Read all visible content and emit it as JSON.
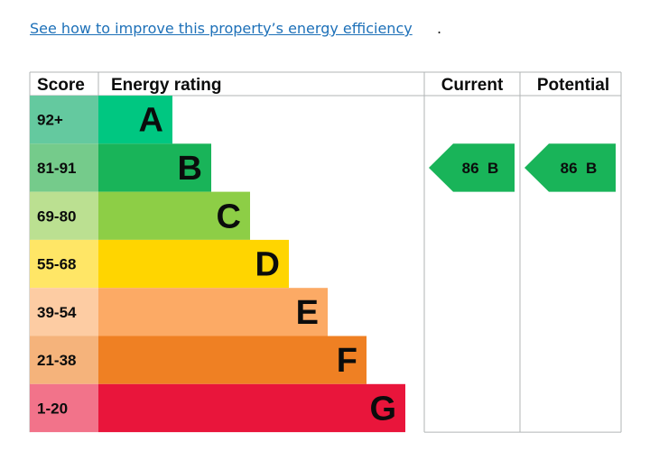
{
  "link": {
    "text": "See how to improve this property’s energy efficiency",
    "suffix": "."
  },
  "chart_data": {
    "type": "table",
    "headers": {
      "score": "Score",
      "rating": "Energy rating",
      "current": "Current",
      "potential": "Potential"
    },
    "bands": [
      {
        "score": "92+",
        "letter": "A",
        "color": "#00c781",
        "score_color": "#64c99f"
      },
      {
        "score": "81-91",
        "letter": "B",
        "color": "#19b459",
        "score_color": "#75cb8b"
      },
      {
        "score": "69-80",
        "letter": "C",
        "color": "#8dce46",
        "score_color": "#bbe091"
      },
      {
        "score": "55-68",
        "letter": "D",
        "color": "#ffd500",
        "score_color": "#ffe666"
      },
      {
        "score": "39-54",
        "letter": "E",
        "color": "#fcaa65",
        "score_color": "#fdcca3"
      },
      {
        "score": "21-38",
        "letter": "F",
        "color": "#ef8023",
        "score_color": "#f5b37b"
      },
      {
        "score": "1-20",
        "letter": "G",
        "color": "#e9153b",
        "score_color": "#f2738a"
      }
    ],
    "current": {
      "value": 86,
      "band": "B",
      "label": "86  B",
      "color": "#19b459"
    },
    "potential": {
      "value": 86,
      "band": "B",
      "label": "86  B",
      "color": "#19b459"
    }
  }
}
